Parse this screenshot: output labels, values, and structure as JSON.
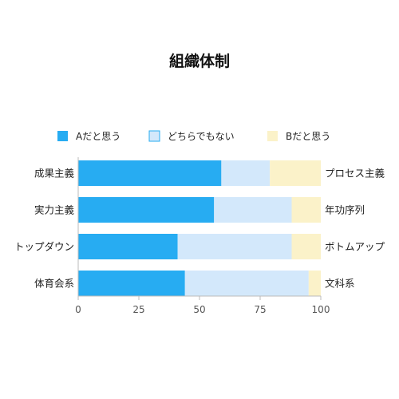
{
  "chart_data": {
    "type": "bar",
    "orientation": "horizontal",
    "stacked": true,
    "title": "組織体制",
    "categories_left": [
      "成果主義",
      "実力主義",
      "トップダウン",
      "体育会系"
    ],
    "categories_right": [
      "プロセス主義",
      "年功序列",
      "ボトムアップ",
      "文科系"
    ],
    "series": [
      {
        "name": "Aだと思う",
        "color": "#27acf2",
        "values": [
          59,
          56,
          41,
          44
        ]
      },
      {
        "name": "どちらでもない",
        "color": "#d3e8fb",
        "values": [
          20,
          32,
          47,
          51
        ]
      },
      {
        "name": "Bだと思う",
        "color": "#fbf2c9",
        "values": [
          21,
          12,
          12,
          5
        ]
      }
    ],
    "xlim": [
      0,
      100
    ],
    "xticks": [
      "0",
      "25",
      "50",
      "75",
      "100"
    ],
    "grid": false,
    "legend_position": "top"
  }
}
